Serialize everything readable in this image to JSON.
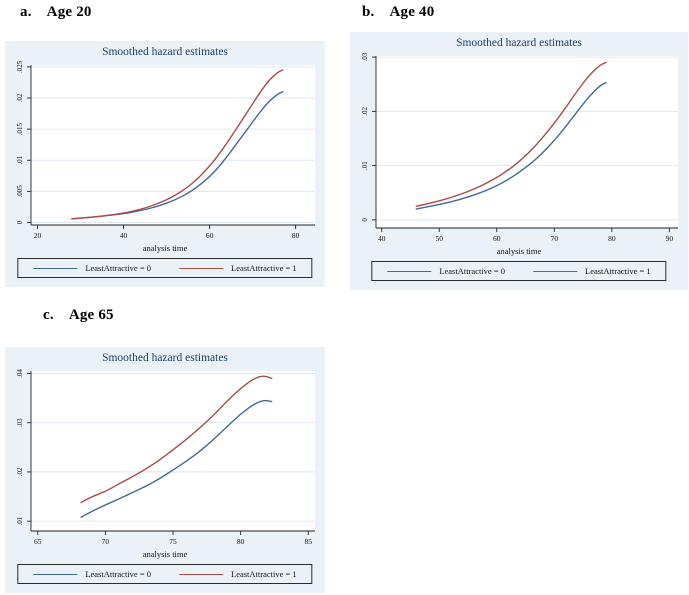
{
  "theme": {
    "page_bg": "#ffffff",
    "panel_bg": "#eaf1f7",
    "plot_bg": "#ffffff",
    "grid_color": "#dfe7f1",
    "axis_color": "#222222",
    "tick_label_color": "#111111",
    "title_color": "#1c3f6f",
    "blue_line": "#41699c",
    "red_line": "#ab4a47"
  },
  "figures": [
    {
      "heading_label": "a.",
      "heading_title": "Age 20"
    },
    {
      "heading_label": "b.",
      "heading_title": "Age 40"
    },
    {
      "heading_label": "c.",
      "heading_title": "Age 65"
    }
  ],
  "chart_data": [
    {
      "type": "line",
      "title": "Smoothed hazard estimates",
      "xlabel": "analysis time",
      "ylabel": "",
      "grid": "horizontal",
      "legend_position": "bottom",
      "xlim": [
        18.5,
        84.5
      ],
      "ylim": [
        -0.0004,
        0.0253
      ],
      "x_ticks": [
        20,
        40,
        60,
        80
      ],
      "x_tick_labels": [
        "20",
        "40",
        "60",
        "80"
      ],
      "y_ticks": [
        0,
        0.005,
        0.01,
        0.015,
        0.02,
        0.025
      ],
      "y_tick_labels": [
        "0",
        ".005",
        ".01",
        ".015",
        ".02",
        ".025"
      ],
      "series": [
        {
          "name": "LeastAttractive = 0",
          "color": "#41699c",
          "x": [
            28,
            32,
            36,
            40,
            44,
            48,
            52,
            56,
            60,
            63,
            66,
            69,
            72,
            74,
            76,
            77
          ],
          "y": [
            0.0006,
            0.0008,
            0.0011,
            0.0014,
            0.0019,
            0.0026,
            0.0036,
            0.0051,
            0.0073,
            0.0096,
            0.0124,
            0.0152,
            0.018,
            0.0196,
            0.0207,
            0.021
          ]
        },
        {
          "name": "LeastAttractive = 1",
          "color": "#ab4a47",
          "x": [
            28,
            32,
            36,
            40,
            44,
            48,
            52,
            56,
            60,
            63,
            66,
            69,
            72,
            74,
            76,
            77
          ],
          "y": [
            0.0006,
            0.0008,
            0.0011,
            0.0015,
            0.0021,
            0.003,
            0.0043,
            0.0062,
            0.009,
            0.0117,
            0.0148,
            0.018,
            0.0212,
            0.023,
            0.0242,
            0.0245
          ]
        }
      ]
    },
    {
      "type": "line",
      "title": "Smoothed hazard estimates",
      "xlabel": "analysis time",
      "ylabel": "",
      "grid": "horizontal",
      "legend_position": "bottom",
      "xlim": [
        39,
        91.5
      ],
      "ylim": [
        -0.0015,
        0.0302
      ],
      "x_ticks": [
        40,
        50,
        60,
        70,
        80,
        90
      ],
      "x_tick_labels": [
        "40",
        "50",
        "60",
        "70",
        "80",
        "90"
      ],
      "y_ticks": [
        0,
        0.01,
        0.02,
        0.03
      ],
      "y_tick_labels": [
        "0",
        ".01",
        ".02",
        ".03"
      ],
      "series": [
        {
          "name": "LeastAttractive = 0",
          "color": "#41699c",
          "x": [
            46,
            49,
            52,
            55,
            58,
            61,
            64,
            67,
            70,
            72,
            74,
            76,
            78,
            79
          ],
          "y": [
            0.002,
            0.0026,
            0.0033,
            0.0042,
            0.0053,
            0.0068,
            0.0088,
            0.0113,
            0.0146,
            0.0172,
            0.02,
            0.0227,
            0.0248,
            0.0253
          ]
        },
        {
          "name": "LeastAttractive = 1",
          "color": "#ab4a47",
          "x": [
            46,
            49,
            52,
            55,
            58,
            61,
            64,
            67,
            70,
            72,
            74,
            76,
            78,
            79
          ],
          "y": [
            0.0025,
            0.0032,
            0.0041,
            0.0052,
            0.0066,
            0.0084,
            0.0108,
            0.0139,
            0.0178,
            0.0207,
            0.0238,
            0.0266,
            0.0286,
            0.029
          ]
        }
      ]
    },
    {
      "type": "line",
      "title": "Smoothed hazard estimates",
      "xlabel": "analysis time",
      "ylabel": "",
      "grid": "horizontal",
      "legend_position": "bottom",
      "xlim": [
        64.5,
        85.5
      ],
      "ylim": [
        0.008,
        0.0405
      ],
      "x_ticks": [
        65,
        70,
        75,
        80,
        85
      ],
      "x_tick_labels": [
        "65",
        "70",
        "75",
        "80",
        "85"
      ],
      "y_ticks": [
        0.01,
        0.02,
        0.03,
        0.04
      ],
      "y_tick_labels": [
        ".01",
        ".02",
        ".03",
        ".04"
      ],
      "series": [
        {
          "name": "LeastAttractive = 0",
          "color": "#41699c",
          "x": [
            68.2,
            69,
            70,
            71,
            72,
            73,
            74,
            75,
            76,
            77,
            78,
            79,
            80,
            81,
            81.7,
            82.3
          ],
          "y": [
            0.0108,
            0.012,
            0.0133,
            0.0145,
            0.0158,
            0.0171,
            0.0186,
            0.0204,
            0.0222,
            0.0242,
            0.0266,
            0.0292,
            0.0318,
            0.0338,
            0.0346,
            0.0343
          ]
        },
        {
          "name": "LeastAttractive = 1",
          "color": "#ab4a47",
          "x": [
            68.2,
            69,
            70,
            71,
            72,
            73,
            74,
            75,
            76,
            77,
            78,
            79,
            80,
            81,
            81.7,
            82.3
          ],
          "y": [
            0.0138,
            0.015,
            0.016,
            0.0176,
            0.019,
            0.0206,
            0.0224,
            0.0245,
            0.0266,
            0.029,
            0.0315,
            0.0344,
            0.037,
            0.039,
            0.0396,
            0.039
          ]
        }
      ]
    }
  ]
}
